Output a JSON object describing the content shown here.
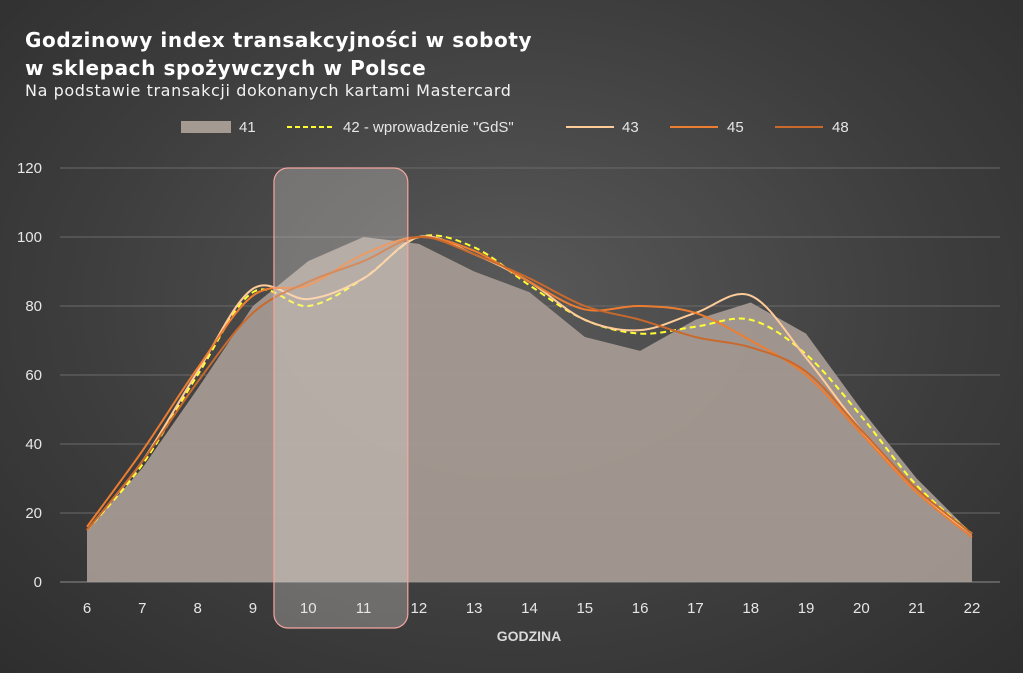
{
  "chart_data": {
    "type": "line",
    "title_line1": "Godzinowy index transakcyjności w soboty",
    "title_line2": "w sklepach spożywczych w Polsce",
    "subtitle": "Na podstawie transakcji dokonanych kartami Mastercard",
    "xlabel": "GODZINA",
    "ylabel": "",
    "x": [
      6,
      7,
      8,
      9,
      10,
      11,
      12,
      13,
      14,
      15,
      16,
      17,
      18,
      19,
      20,
      21,
      22
    ],
    "yticks": [
      0,
      20,
      40,
      60,
      80,
      100,
      120
    ],
    "ylim": [
      0,
      120
    ],
    "grid": true,
    "legend_position": "top",
    "highlight_range": [
      10,
      11
    ],
    "series": [
      {
        "name": "41",
        "style": "area",
        "color": "#a59a92",
        "values": [
          15,
          33,
          56,
          80,
          93,
          100,
          98,
          90,
          84,
          71,
          67,
          76,
          81,
          72,
          50,
          30,
          14
        ]
      },
      {
        "name": "42 - wprowadzenie \"GdS\"",
        "style": "dashed",
        "color": "#ffff33",
        "values": [
          15,
          34,
          60,
          84,
          80,
          88,
          100,
          97,
          86,
          76,
          72,
          74,
          76,
          66,
          48,
          28,
          14
        ]
      },
      {
        "name": "43",
        "style": "line",
        "color": "#ffcc99",
        "values": [
          15,
          35,
          61,
          85,
          82,
          88,
          100,
          95,
          87,
          76,
          73,
          78,
          83,
          65,
          44,
          26,
          14
        ]
      },
      {
        "name": "45",
        "style": "line",
        "color": "#ed7d31",
        "values": [
          16,
          38,
          62,
          83,
          86,
          95,
          100,
          96,
          87,
          79,
          80,
          78,
          70,
          60,
          43,
          26,
          13
        ]
      },
      {
        "name": "48",
        "style": "line",
        "color": "#c9692c",
        "values": [
          15,
          35,
          58,
          78,
          87,
          93,
          100,
          95,
          88,
          80,
          76,
          71,
          68,
          61,
          44,
          27,
          14
        ]
      }
    ]
  }
}
